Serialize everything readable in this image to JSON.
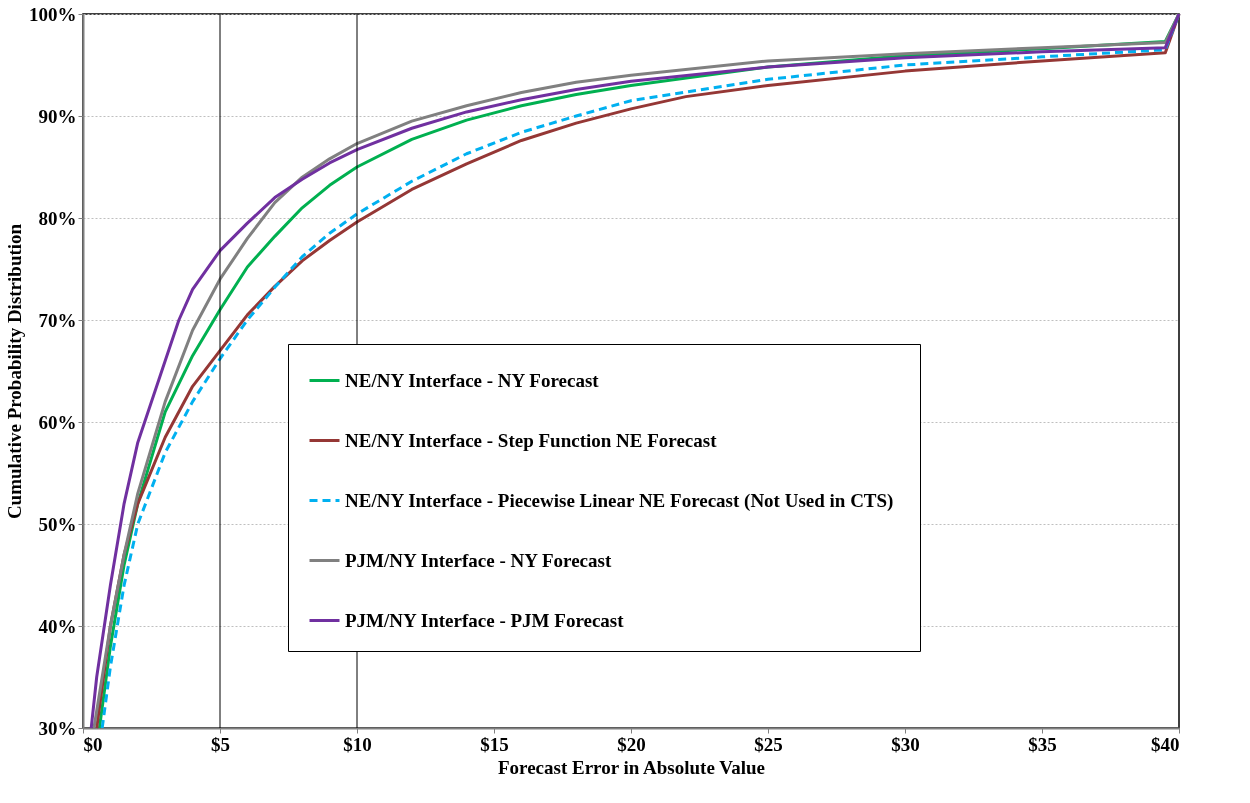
{
  "chart_data": {
    "type": "line",
    "xlabel": "Forecast Error in Absolute Value",
    "ylabel": "Cumulative Probability Distribution",
    "xlim": [
      0,
      40
    ],
    "ylim": [
      30,
      100
    ],
    "xticks": [
      {
        "value": 0,
        "label": "$0"
      },
      {
        "value": 5,
        "label": "$5"
      },
      {
        "value": 10,
        "label": "$10"
      },
      {
        "value": 15,
        "label": "$15"
      },
      {
        "value": 20,
        "label": "$20"
      },
      {
        "value": 25,
        "label": "$25"
      },
      {
        "value": 30,
        "label": "$30"
      },
      {
        "value": 35,
        "label": "$35"
      },
      {
        "value": 40,
        "label": "$40"
      }
    ],
    "yticks": [
      {
        "value": 30,
        "label": "30%"
      },
      {
        "value": 40,
        "label": "40%"
      },
      {
        "value": 50,
        "label": "50%"
      },
      {
        "value": 60,
        "label": "60%"
      },
      {
        "value": 70,
        "label": "70%"
      },
      {
        "value": 80,
        "label": "80%"
      },
      {
        "value": 90,
        "label": "90%"
      },
      {
        "value": 100,
        "label": "100%"
      }
    ],
    "grid": "y",
    "legend": "bottom right",
    "ref_lines": [
      {
        "axis": "x",
        "value": 5,
        "color": "#000000"
      },
      {
        "axis": "x",
        "value": 10,
        "color": "#000000"
      }
    ],
    "series": [
      {
        "name": "NE/NY Interface - NY Forecast",
        "color": "#00b050",
        "line_style": "solid",
        "x": [
          0.6,
          1,
          1.5,
          2,
          3,
          4,
          5,
          6,
          7,
          8,
          9,
          10,
          12,
          14,
          16,
          18,
          20,
          25,
          30,
          35,
          39.5,
          40
        ],
        "values": [
          30,
          38,
          46,
          52,
          61,
          66.5,
          71,
          75.2,
          78.2,
          81,
          83.2,
          85,
          87.7,
          89.6,
          91,
          92.1,
          93,
          94.8,
          95.9,
          96.6,
          97.3,
          100
        ]
      },
      {
        "name": "NE/NY Interface - Step Function NE Forecast",
        "color": "#953735",
        "line_style": "solid",
        "x": [
          0.5,
          1,
          1.5,
          2,
          3,
          4,
          5,
          6,
          7,
          8,
          9,
          10,
          12,
          14,
          16,
          18,
          20,
          22,
          25,
          30,
          35,
          39.5,
          40
        ],
        "values": [
          30,
          40,
          47,
          52,
          58.5,
          63.5,
          67,
          70.5,
          73.3,
          75.8,
          77.8,
          79.6,
          82.8,
          85.3,
          87.6,
          89.3,
          90.7,
          91.9,
          93,
          94.4,
          95.4,
          96.2,
          100
        ]
      },
      {
        "name": "NE/NY Interface  - Piecewise Linear NE Forecast (Not Used in CTS)",
        "color": "#00b0f0",
        "line_style": "dashed",
        "x": [
          0.7,
          1,
          1.5,
          2,
          3,
          4,
          5,
          6,
          7,
          8,
          9,
          10,
          12,
          14,
          16,
          18,
          20,
          25,
          30,
          35,
          39.5,
          40
        ],
        "values": [
          30,
          36,
          44,
          50,
          57,
          62,
          66.2,
          70,
          73.2,
          76.2,
          78.5,
          80.4,
          83.6,
          86.3,
          88.4,
          90,
          91.5,
          93.6,
          95,
          95.8,
          96.5,
          100
        ]
      },
      {
        "name": "PJM/NY Interface - NY Forecast",
        "color": "#808080",
        "line_style": "solid",
        "x": [
          0.4,
          1,
          1.5,
          2,
          3,
          4,
          5,
          6,
          7,
          8,
          9,
          10,
          12,
          14,
          16,
          18,
          20,
          25,
          30,
          35,
          39.5,
          40
        ],
        "values": [
          30,
          40,
          47,
          53,
          62,
          69,
          74,
          78,
          81.5,
          84,
          85.8,
          87.3,
          89.5,
          91,
          92.3,
          93.3,
          94,
          95.4,
          96.1,
          96.7,
          97.2,
          100
        ]
      },
      {
        "name": "PJM/NY Interface - PJM Forecast",
        "color": "#7030a0",
        "line_style": "solid",
        "x": [
          0.3,
          0.5,
          1,
          1.5,
          2,
          3,
          3.5,
          4,
          5,
          6,
          7,
          8,
          9,
          10,
          12,
          14,
          16,
          18,
          20,
          25,
          30,
          35,
          39.5,
          40
        ],
        "values": [
          30,
          35,
          44,
          52,
          58,
          66,
          70,
          73,
          76.8,
          79.5,
          82,
          83.8,
          85.4,
          86.7,
          88.8,
          90.4,
          91.6,
          92.6,
          93.4,
          94.8,
          95.7,
          96.3,
          96.7,
          100
        ]
      }
    ]
  }
}
